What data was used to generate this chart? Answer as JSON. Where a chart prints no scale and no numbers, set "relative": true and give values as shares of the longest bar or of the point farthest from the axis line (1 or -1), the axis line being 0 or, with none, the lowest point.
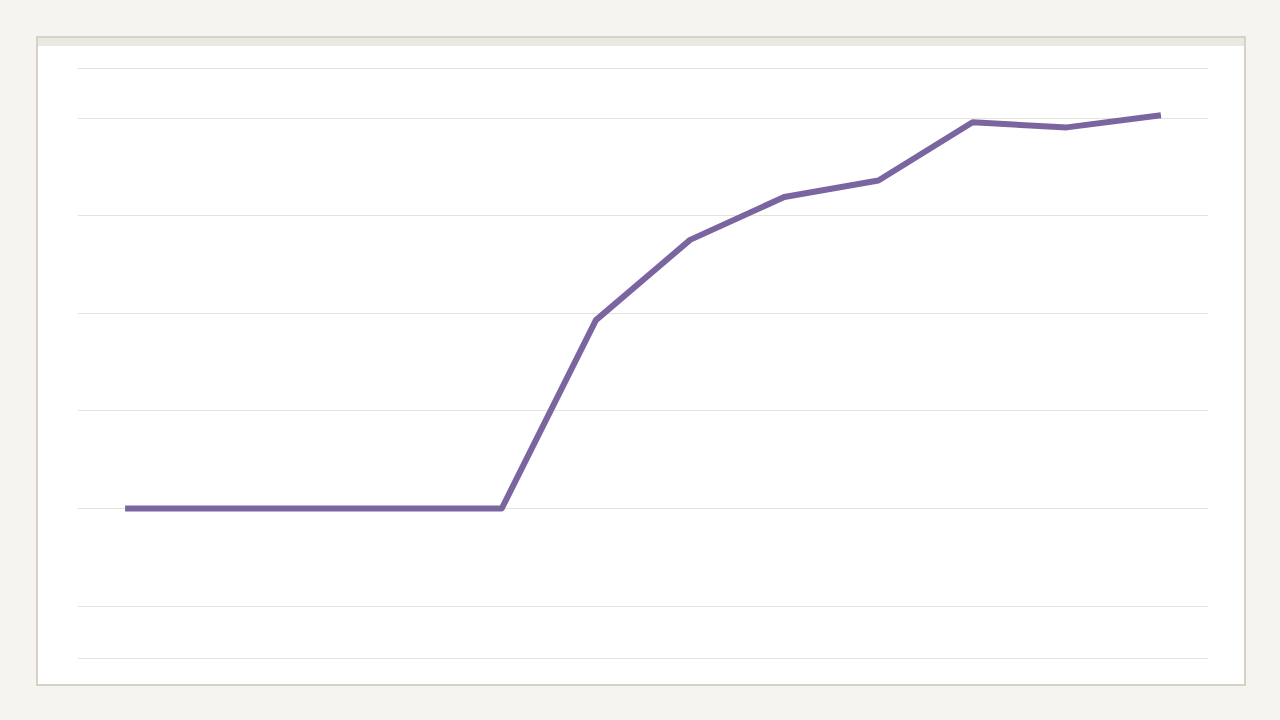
{
  "chart_data": {
    "type": "line",
    "relative": true,
    "grid": "y",
    "marker": "none",
    "line_style": "solid",
    "legend": false,
    "categories": [
      null,
      null,
      null,
      null,
      null,
      null,
      null,
      null,
      null,
      null,
      null,
      null
    ],
    "series": [
      {
        "color": "#7a65a0",
        "values": [
          0,
          0,
          0,
          0,
          0,
          0.479,
          0.683,
          0.792,
          0.834,
          0.982,
          0.969,
          1
        ]
      }
    ]
  }
}
